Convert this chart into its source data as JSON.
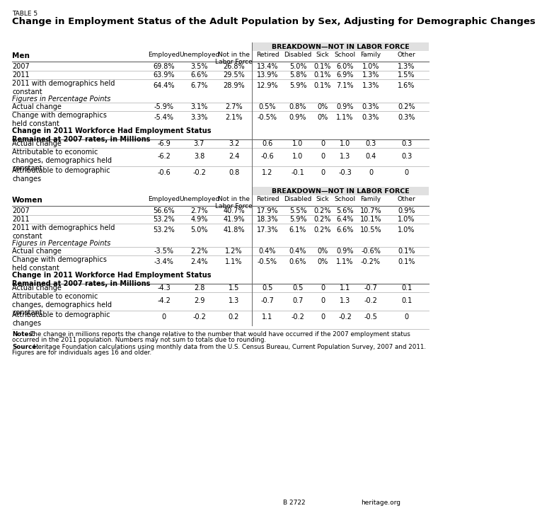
{
  "table_label": "TABLE 5",
  "title": "Change in Employment Status of the Adult Population by Sex, Adjusting for Demographic Changes",
  "breakdown_header": "BREAKDOWN—NOT IN LABOR FORCE",
  "col_names": [
    "Employed",
    "Unemployed",
    "Not in the\nLabor Force",
    "Retired",
    "Disabled",
    "Sick",
    "School",
    "Family",
    "Other"
  ],
  "men_label": "Men",
  "women_label": "Women",
  "men_rows": [
    {
      "label": "2007",
      "values": [
        "69.8%",
        "3.5%",
        "26.8%",
        "13.4%",
        "5.0%",
        "0.1%",
        "6.0%",
        "1.0%",
        "1.3%"
      ]
    },
    {
      "label": "2011",
      "values": [
        "63.9%",
        "6.6%",
        "29.5%",
        "13.9%",
        "5.8%",
        "0.1%",
        "6.9%",
        "1.3%",
        "1.5%"
      ]
    },
    {
      "label": "2011 with demographics held\nconstant",
      "values": [
        "64.4%",
        "6.7%",
        "28.9%",
        "12.9%",
        "5.9%",
        "0.1%",
        "7.1%",
        "1.3%",
        "1.6%"
      ]
    }
  ],
  "men_italic": "Figures in Percentage Points",
  "men_pct_rows": [
    {
      "label": "Actual change",
      "values": [
        "-5.9%",
        "3.1%",
        "2.7%",
        "0.5%",
        "0.8%",
        "0%",
        "0.9%",
        "0.3%",
        "0.2%"
      ]
    },
    {
      "label": "Change with demographics\nheld constant",
      "values": [
        "-5.4%",
        "3.3%",
        "2.1%",
        "-0.5%",
        "0.9%",
        "0%",
        "1.1%",
        "0.3%",
        "0.3%"
      ]
    }
  ],
  "men_bold_header": "Change in 2011 Workforce Had Employment Status\nRemained at 2007 rates, in Millions",
  "men_mil_rows": [
    {
      "label": "Actual change",
      "values": [
        "-6.9",
        "3.7",
        "3.2",
        "0.6",
        "1.0",
        "0",
        "1.0",
        "0.3",
        "0.3"
      ]
    },
    {
      "label": "Attributable to economic\nchanges, demographics held\nconstant",
      "values": [
        "-6.2",
        "3.8",
        "2.4",
        "-0.6",
        "1.0",
        "0",
        "1.3",
        "0.4",
        "0.3"
      ]
    },
    {
      "label": "Attributable to demographic\nchanges",
      "values": [
        "-0.6",
        "-0.2",
        "0.8",
        "1.2",
        "-0.1",
        "0",
        "-0.3",
        "0",
        "0"
      ]
    }
  ],
  "women_rows": [
    {
      "label": "2007",
      "values": [
        "56.6%",
        "2.7%",
        "40.7%",
        "17.9%",
        "5.5%",
        "0.2%",
        "5.6%",
        "10.7%",
        "0.9%"
      ]
    },
    {
      "label": "2011",
      "values": [
        "53.2%",
        "4.9%",
        "41.9%",
        "18.3%",
        "5.9%",
        "0.2%",
        "6.4%",
        "10.1%",
        "1.0%"
      ]
    },
    {
      "label": "2011 with demographics held\nconstant",
      "values": [
        "53.2%",
        "5.0%",
        "41.8%",
        "17.3%",
        "6.1%",
        "0.2%",
        "6.6%",
        "10.5%",
        "1.0%"
      ]
    }
  ],
  "women_italic": "Figures in Percentage Points",
  "women_pct_rows": [
    {
      "label": "Actual change",
      "values": [
        "-3.5%",
        "2.2%",
        "1.2%",
        "0.4%",
        "0.4%",
        "0%",
        "0.9%",
        "-0.6%",
        "0.1%"
      ]
    },
    {
      "label": "Change with demographics\nheld constant",
      "values": [
        "-3.4%",
        "2.4%",
        "1.1%",
        "-0.5%",
        "0.6%",
        "0%",
        "1.1%",
        "-0.2%",
        "0.1%"
      ]
    }
  ],
  "women_bold_header": "Change in 2011 Workforce Had Employment Status\nRemained at 2007 rates, in Millions",
  "women_mil_rows": [
    {
      "label": "Actual change",
      "values": [
        "-4.3",
        "2.8",
        "1.5",
        "0.5",
        "0.5",
        "0",
        "1.1",
        "-0.7",
        "0.1"
      ]
    },
    {
      "label": "Attributable to economic\nchanges, demographics held\nconstant",
      "values": [
        "-4.2",
        "2.9",
        "1.3",
        "-0.7",
        "0.7",
        "0",
        "1.3",
        "-0.2",
        "0.1"
      ]
    },
    {
      "label": "Attributable to demographic\nchanges",
      "values": [
        "0",
        "-0.2",
        "0.2",
        "1.1",
        "-0.2",
        "0",
        "-0.2",
        "-0.5",
        "0"
      ]
    }
  ],
  "notes_bold": "Notes:",
  "notes_text": " The change in millions reports the change relative to the number that would have occurred if the 2007 employment status\noccurred in the 2011 population. Numbers may not sum to totals due to rounding.",
  "source_bold": "Source:",
  "source_text": " Heritage Foundation calculations using monthly data from the U.S. Census Bureau, Current Population Survey, 2007 and 2011.\nFigures are for individuals ages 16 and older.",
  "footer_left": "B 2722",
  "footer_right": "heritage.org",
  "bg_color": "#FFFFFF",
  "shade_color": "#E0E0E0",
  "line_dark": "#666666",
  "line_light": "#BBBBBB"
}
